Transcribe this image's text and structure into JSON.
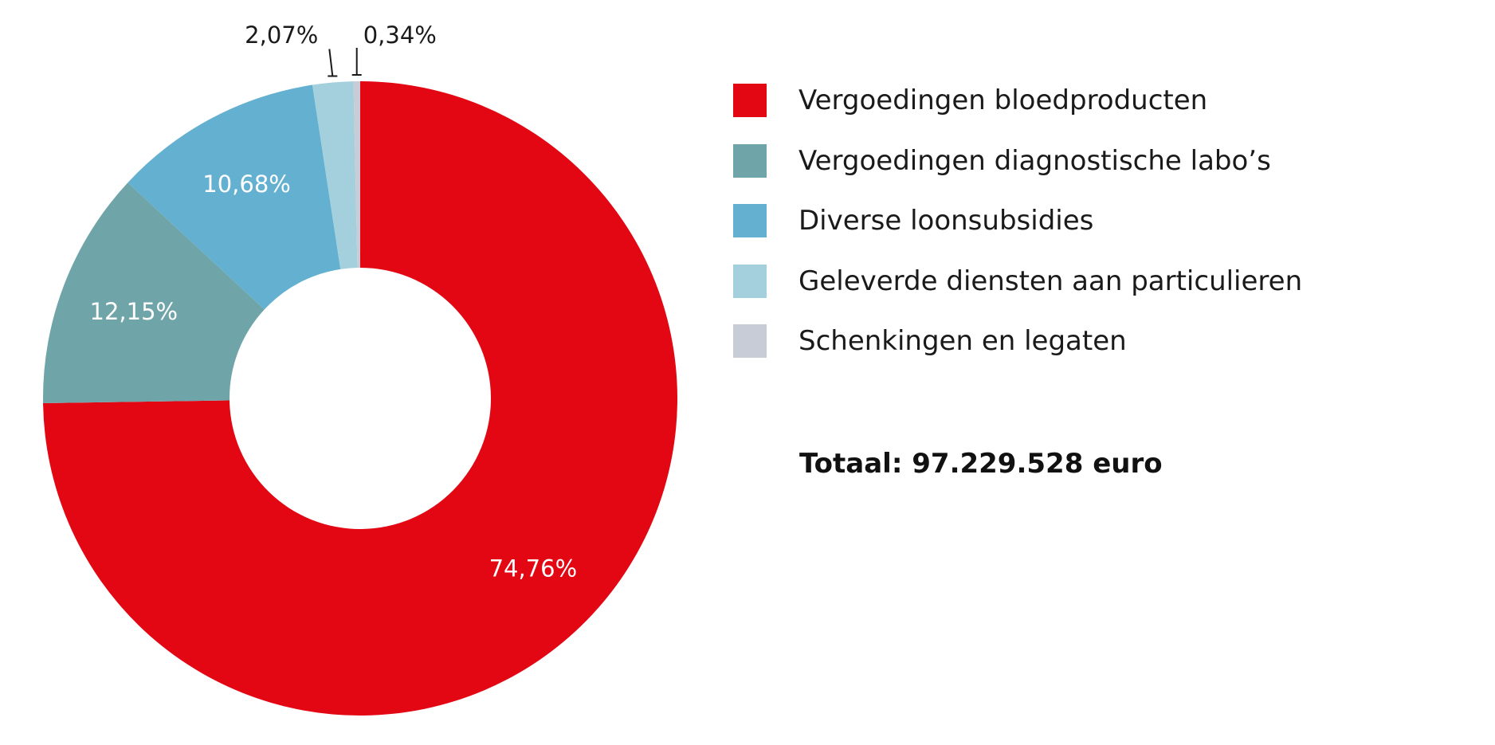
{
  "chart_data": {
    "type": "pie",
    "donut": true,
    "slices": [
      {
        "name": "Vergoedingen bloedproducten",
        "value": 74.76,
        "label": "74,76%",
        "color": "#e30613"
      },
      {
        "name": "Vergoedingen diagnostische labo’s",
        "value": 12.15,
        "label": "12,15%",
        "color": "#6fa5a8"
      },
      {
        "name": "Diverse loonsubsidies",
        "value": 10.68,
        "label": "10,68%",
        "color": "#63b0d1"
      },
      {
        "name": "Geleverde diensten aan particulieren",
        "value": 2.07,
        "label": "2,07%",
        "color": "#a3d0dc"
      },
      {
        "name": "Schenkingen en legaten",
        "value": 0.34,
        "label": "0,34%",
        "color": "#c8ccd6"
      }
    ],
    "legend_position": "right",
    "total": "Totaal: 97.229.528 euro"
  }
}
